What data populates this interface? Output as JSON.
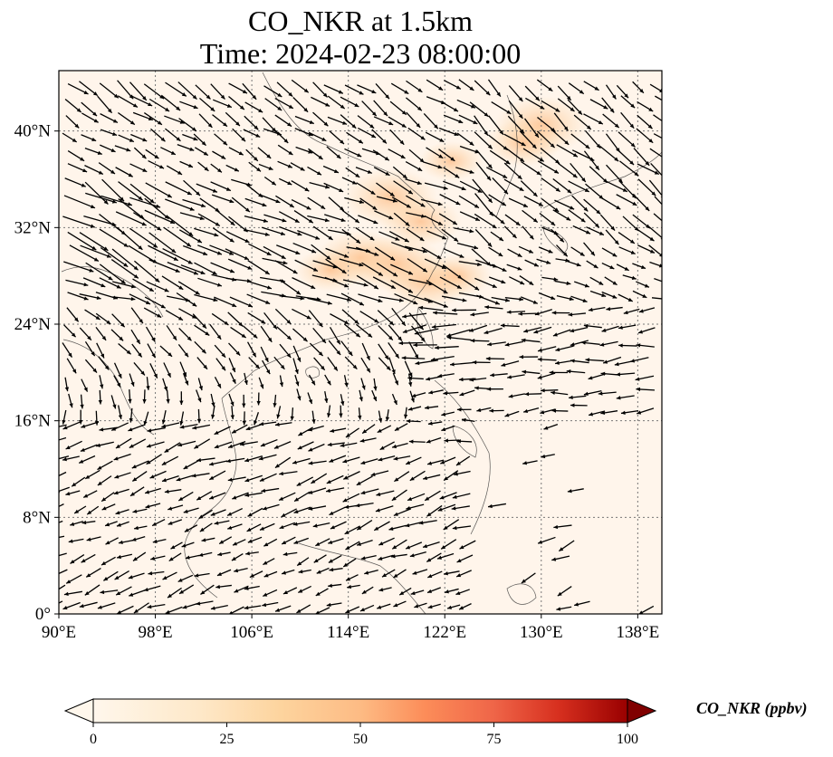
{
  "figure": {
    "title_line1": "CO_NKR at 1.5km",
    "title_line2": "Time: 2024-02-23 08:00:00"
  },
  "map": {
    "extent": {
      "lon_min": 90,
      "lon_max": 140,
      "lat_min": 0,
      "lat_max": 45
    },
    "background_color": "#fff5eb",
    "gridlines": "dotted",
    "lon_ticks": [
      {
        "value": 90,
        "label": "90°E"
      },
      {
        "value": 98,
        "label": "98°E"
      },
      {
        "value": 106,
        "label": "106°E"
      },
      {
        "value": 114,
        "label": "114°E"
      },
      {
        "value": 122,
        "label": "122°E"
      },
      {
        "value": 130,
        "label": "130°E"
      },
      {
        "value": 138,
        "label": "138°E"
      }
    ],
    "lat_ticks": [
      {
        "value": 0,
        "label": "0°"
      },
      {
        "value": 8,
        "label": "8°N"
      },
      {
        "value": 16,
        "label": "16°N"
      },
      {
        "value": 24,
        "label": "24°N"
      },
      {
        "value": 32,
        "label": "32°N"
      },
      {
        "value": 40,
        "label": "40°N"
      }
    ],
    "concentration_patches": [
      {
        "lon": 117.5,
        "lat": 34.5,
        "value": 18
      },
      {
        "lon": 120.0,
        "lat": 32.5,
        "value": 14
      },
      {
        "lon": 115.0,
        "lat": 29.5,
        "value": 16
      },
      {
        "lon": 118.0,
        "lat": 29.0,
        "value": 18
      },
      {
        "lon": 120.5,
        "lat": 27.5,
        "value": 16
      },
      {
        "lon": 112.5,
        "lat": 28.5,
        "value": 10
      },
      {
        "lon": 123.0,
        "lat": 28.0,
        "value": 10
      },
      {
        "lon": 130.0,
        "lat": 40.5,
        "value": 18
      },
      {
        "lon": 128.5,
        "lat": 39.0,
        "value": 12
      },
      {
        "lon": 122.5,
        "lat": 37.5,
        "value": 8
      }
    ],
    "wind_field": "black arrows, generated pattern"
  },
  "colorbar": {
    "label": "CO_NKR (ppbv)",
    "min": 0,
    "max": 100,
    "colormap": "OrRd",
    "ticks": [
      {
        "value": 0,
        "label": "0"
      },
      {
        "value": 25,
        "label": "25"
      },
      {
        "value": 50,
        "label": "50"
      },
      {
        "value": 75,
        "label": "75"
      },
      {
        "value": 100,
        "label": "100"
      }
    ],
    "extend": "both"
  }
}
